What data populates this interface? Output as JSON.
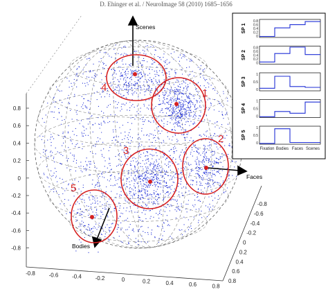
{
  "header_text": "D. Ehinger et al. / NeuroImage 58 (2010) 1685–1656",
  "chart_data": {
    "type": "scatter",
    "projection": "3d-sphere",
    "point_color": "#1f2fd6",
    "cluster_color": "#d62020",
    "axes": {
      "vertical_ticks": [
        "0.8",
        "0.6",
        "0.4",
        "0.2",
        "0",
        "-0.2",
        "-0.4",
        "-0.6",
        "-0.8"
      ],
      "front_ticks": [
        "-0.8",
        "-0.6",
        "-0.4",
        "-0.2",
        "0",
        "0.2",
        "0.4",
        "0.6",
        "0.8"
      ],
      "side_ticks": [
        "-0.8",
        "-0.6",
        "-0.4",
        "-0.2",
        "0",
        "0.2",
        "0.4",
        "0.6",
        "0.8"
      ]
    },
    "vectors": [
      {
        "label": "Scenes"
      },
      {
        "label": "Faces"
      },
      {
        "label": "Bodies"
      }
    ],
    "clusters": [
      {
        "label": "1"
      },
      {
        "label": "2"
      },
      {
        "label": "3"
      },
      {
        "label": "4"
      },
      {
        "label": "5"
      }
    ],
    "inset": {
      "type": "step",
      "categories": [
        "Fixation",
        "Bodies",
        "Faces",
        "Scenes"
      ],
      "panels": [
        {
          "label": "SP 1",
          "ticks": [
            "0.8",
            "0.6",
            "0.4",
            "0.2",
            "0"
          ],
          "ylim": [
            0,
            0.85
          ],
          "values": [
            0.05,
            0.45,
            0.6,
            0.75
          ]
        },
        {
          "label": "SP 2",
          "ticks": [
            "0.8",
            "0.6",
            "0.4",
            "0.2",
            "0"
          ],
          "ylim": [
            0,
            0.85
          ],
          "values": [
            0.1,
            0.5,
            0.8,
            0.45
          ]
        },
        {
          "label": "SP 3",
          "ticks": [
            "1",
            "0.5",
            "0"
          ],
          "ylim": [
            0,
            1.05
          ],
          "values": [
            0.15,
            0.85,
            0.25,
            0.2
          ]
        },
        {
          "label": "SP 4",
          "ticks": [
            "1",
            "0.5",
            "0"
          ],
          "ylim": [
            0,
            1.05
          ],
          "values": [
            0.05,
            0.35,
            0.25,
            0.9
          ]
        },
        {
          "label": "SP 5",
          "ticks": [
            "1",
            "0.5",
            "0"
          ],
          "ylim": [
            0,
            1.05
          ],
          "values": [
            0.05,
            0.9,
            0.1,
            0.1
          ]
        }
      ]
    }
  }
}
